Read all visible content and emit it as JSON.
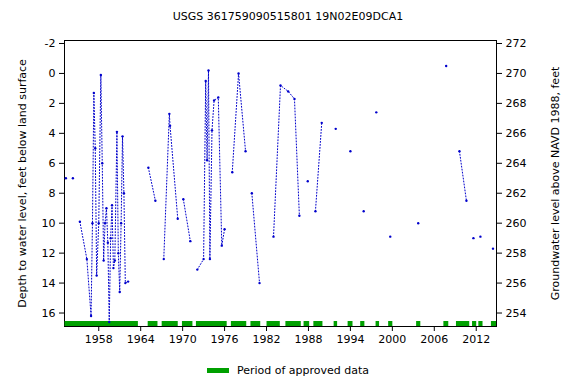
{
  "chart_data": {
    "type": "line",
    "title": "USGS 361759090515801 19N02E09DCA1",
    "x_label": null,
    "y_label": "Depth to water level, feet below land surface",
    "y2_label": "Groundwater level above NAVD 1988, feet",
    "xlim": [
      1953.1,
      2014.9
    ],
    "xticks": [
      1958,
      1964,
      1970,
      1976,
      1982,
      1988,
      1994,
      2000,
      2006,
      2012
    ],
    "ylim": [
      -2.2,
      16.9
    ],
    "yticks": [
      -2,
      0,
      2,
      4,
      6,
      8,
      10,
      12,
      14,
      16
    ],
    "y2lim": [
      272.2,
      253.1
    ],
    "y2ticks": [
      254,
      256,
      258,
      260,
      262,
      264,
      266,
      268,
      270,
      272
    ],
    "grid": false,
    "series": [
      {
        "name": "Depth to water level",
        "color": "#0000cc",
        "marker": "dot",
        "line_style": "dotted",
        "x": [
          1953.3,
          null,
          1954.3,
          null,
          1955.3,
          1956.3,
          1956.9,
          1957.1,
          1957.3,
          1957.5,
          1957.7,
          1958.0,
          1958.3,
          1958.5,
          1958.7,
          1958.9,
          1959.1,
          1959.3,
          1959.5,
          1959.7,
          1959.9,
          1960.1,
          1960.3,
          1960.6,
          1960.8,
          1961.0,
          1961.2,
          1961.4,
          1961.6,
          1961.8,
          1962.2,
          null,
          1965.1,
          1966.1,
          null,
          1967.3,
          1968.1,
          1968.2,
          1969.3,
          null,
          1970.1,
          1971.1,
          null,
          1972.1,
          1973.0,
          1973.3,
          1973.5,
          1973.7,
          1973.9,
          1974.2,
          1974.5,
          1975.1,
          1975.6,
          1976.0,
          null,
          1977.1,
          1978.0,
          1979.0,
          null,
          1979.9,
          1981.0,
          null,
          1983.0,
          1984.0,
          1985.1,
          1986.0,
          1986.7,
          null,
          1987.9,
          null,
          1989.0,
          1989.9,
          null,
          1991.9,
          null,
          1994.0,
          null,
          1995.9,
          null,
          1997.7,
          null,
          1999.7,
          null,
          2003.7,
          null,
          2007.7,
          null,
          2009.6,
          2010.6,
          null,
          2011.6,
          null,
          2012.6,
          null,
          2014.4
        ],
        "values": [
          7.0,
          null,
          7.0,
          null,
          9.9,
          12.4,
          16.2,
          10.0,
          1.3,
          5.0,
          13.5,
          10.0,
          0.1,
          6.0,
          12.5,
          10.0,
          9.0,
          11.3,
          16.6,
          11.0,
          8.8,
          13.0,
          12.5,
          3.9,
          12.0,
          14.6,
          10.0,
          4.2,
          8.0,
          14.0,
          13.9,
          null,
          6.3,
          8.5,
          null,
          12.4,
          2.7,
          3.5,
          9.7,
          null,
          8.4,
          11.2,
          null,
          13.1,
          12.4,
          0.5,
          5.8,
          -0.2,
          12.4,
          3.8,
          1.8,
          1.6,
          11.5,
          10.4,
          null,
          6.6,
          0.0,
          5.2,
          null,
          8.0,
          14.0,
          null,
          10.9,
          0.8,
          1.2,
          1.7,
          9.5,
          null,
          7.2,
          null,
          9.2,
          3.3,
          null,
          3.7,
          null,
          5.2,
          null,
          9.2,
          null,
          2.6,
          null,
          10.9,
          null,
          10.0,
          null,
          -0.5,
          null,
          5.2,
          8.5,
          null,
          11.0,
          null,
          10.9,
          null,
          11.7
        ]
      }
    ],
    "approved_periods": {
      "name": "Period of approved data",
      "color": "#00a000",
      "start": [
        1953.1,
        1965.0,
        1967.0,
        1969.9,
        1971.9,
        1976.9,
        1979.7,
        1982.0,
        1984.7,
        1987.3,
        1988.7,
        1991.6,
        1993.6,
        1995.4,
        1997.6,
        1999.4,
        2003.4,
        2007.3,
        2009.1,
        2011.4,
        2012.3,
        2014.1
      ],
      "end": [
        1963.6,
        1966.4,
        1969.3,
        1971.4,
        1976.3,
        1979.1,
        1981.1,
        1983.9,
        1986.9,
        1988.1,
        1990.0,
        1992.1,
        1994.3,
        1996.0,
        1998.1,
        2000.0,
        2004.0,
        2008.0,
        2011.0,
        2012.0,
        2012.9,
        2014.9
      ]
    },
    "legend": "bottom"
  }
}
